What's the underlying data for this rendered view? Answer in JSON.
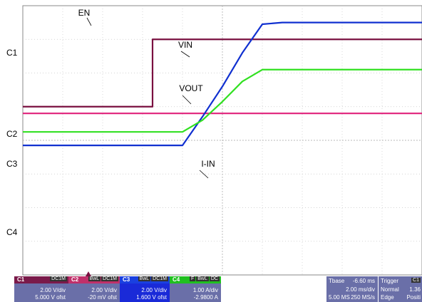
{
  "chart_data": {
    "type": "line",
    "x": [
      -5.0,
      -4.5,
      -4.0,
      -3.5,
      -3.0,
      -2.5,
      -2.0,
      -1.5,
      -1.0,
      -0.5,
      0.0,
      0.5,
      1.0,
      1.5,
      2.0,
      2.5,
      3.0,
      3.5,
      4.0,
      4.5,
      5.0
    ],
    "series": [
      {
        "name": "EN",
        "color": "#7a1040",
        "values": [
          1.0,
          1.0,
          1.0,
          1.0,
          1.0,
          1.0,
          1.0,
          3.0,
          3.0,
          3.0,
          3.0,
          3.0,
          3.0,
          3.0,
          3.0,
          3.0,
          3.0,
          3.0,
          3.0,
          3.0,
          3.0
        ]
      },
      {
        "name": "VIN",
        "color": "#e0207a",
        "values": [
          0.8,
          0.8,
          0.8,
          0.8,
          0.8,
          0.8,
          0.8,
          0.8,
          0.8,
          0.8,
          0.8,
          0.8,
          0.8,
          0.8,
          0.8,
          0.8,
          0.8,
          0.8,
          0.8,
          0.8,
          0.8
        ]
      },
      {
        "name": "VOUT",
        "color": "#1030d0",
        "values": [
          -0.15,
          -0.15,
          -0.15,
          -0.15,
          -0.15,
          -0.15,
          -0.15,
          -0.15,
          -0.15,
          0.7,
          1.6,
          2.6,
          3.45,
          3.5,
          3.5,
          3.5,
          3.5,
          3.5,
          3.5,
          3.5,
          3.5
        ]
      },
      {
        "name": "I-IN",
        "color": "#30e020",
        "values": [
          0.25,
          0.25,
          0.25,
          0.25,
          0.25,
          0.25,
          0.25,
          0.25,
          0.25,
          0.6,
          1.15,
          1.75,
          2.1,
          2.1,
          2.1,
          2.1,
          2.1,
          2.1,
          2.1,
          2.1,
          2.1
        ]
      }
    ],
    "ylim": [
      -4,
      4
    ],
    "xlim": [
      -5,
      5
    ],
    "grid": true,
    "channel_markers": [
      "C1",
      "C2",
      "C3",
      "C4"
    ],
    "annotations": [
      "EN",
      "VIN",
      "VOUT",
      "I-IN"
    ]
  },
  "channels": [
    {
      "id": "C1",
      "tags": [
        "DC1M"
      ],
      "scale": "2.00 V/div",
      "offset": "5.000 V ofst",
      "color": "#7a1a4a"
    },
    {
      "id": "C2",
      "tags": [
        "BwL",
        "DC1M"
      ],
      "scale": "2.00 V/div",
      "offset": "-20 mV ofst",
      "color": "#c0306a"
    },
    {
      "id": "C3",
      "tags": [
        "BwL",
        "DC1M"
      ],
      "scale": "2.00 V/div",
      "offset": "1.600 V ofst",
      "color": "#1a40e0"
    },
    {
      "id": "C4",
      "tags": [
        "F",
        "BwL",
        "DC"
      ],
      "scale": "1.00 A/div",
      "offset": "-2.9800 A",
      "color": "#20c020"
    }
  ],
  "timebase": {
    "label": "Tbase",
    "offset": "-6.60 ms",
    "scale": "2.00 ms/div",
    "samples": "5.00 MS",
    "rate": "250 MS/s"
  },
  "trigger": {
    "label": "Trigger",
    "channel": "C1",
    "mode": "Normal",
    "value": "1.36",
    "type": "Edge",
    "slope": "Positi"
  }
}
